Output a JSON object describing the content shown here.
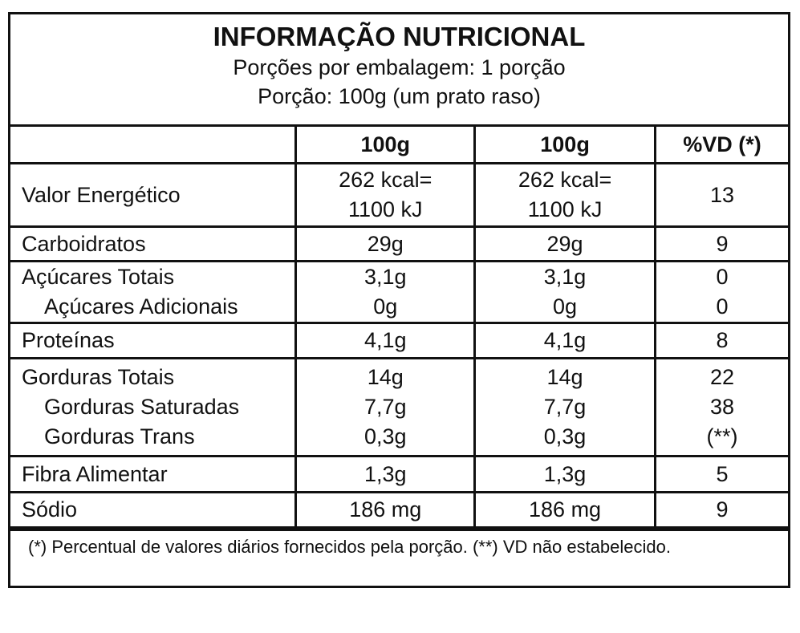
{
  "header": {
    "title": "INFORMAÇÃO NUTRICIONAL",
    "lines": [
      "Porções por embalagem: 1 porção",
      "Porção: 100g (um prato raso)"
    ]
  },
  "table": {
    "columns": [
      "100g",
      "100g",
      "%VD (*)"
    ],
    "groups": [
      {
        "rows": [
          {
            "label": "Valor Energético",
            "cells": [
              [
                "262 kcal=",
                "1100 kJ"
              ],
              [
                "262 kcal=",
                "1100 kJ"
              ],
              [
                "13"
              ]
            ]
          }
        ]
      },
      {
        "rows": [
          {
            "label": "Carboidratos",
            "cells": [
              [
                "29g"
              ],
              [
                "29g"
              ],
              [
                "9"
              ]
            ]
          }
        ]
      },
      {
        "rows": [
          {
            "label": "Açúcares Totais",
            "cells": [
              [
                "3,1g"
              ],
              [
                "3,1g"
              ],
              [
                "0"
              ]
            ]
          },
          {
            "label": "Açúcares Adicionais",
            "indent": true,
            "cells": [
              [
                "0g"
              ],
              [
                "0g"
              ],
              [
                "0"
              ]
            ]
          }
        ]
      },
      {
        "rows": [
          {
            "label": "Proteínas",
            "cells": [
              [
                "4,1g"
              ],
              [
                "4,1g"
              ],
              [
                "8"
              ]
            ]
          }
        ]
      },
      {
        "rows": [
          {
            "label": "Gorduras Totais",
            "cells": [
              [
                "14g"
              ],
              [
                "14g"
              ],
              [
                "22"
              ]
            ]
          },
          {
            "label": "Gorduras Saturadas",
            "indent": true,
            "cells": [
              [
                "7,7g"
              ],
              [
                "7,7g"
              ],
              [
                "38"
              ]
            ]
          },
          {
            "label": "Gorduras Trans",
            "indent": true,
            "cells": [
              [
                "0,3g"
              ],
              [
                "0,3g"
              ],
              [
                "(**)"
              ]
            ]
          }
        ]
      },
      {
        "rows": [
          {
            "label": "Fibra Alimentar",
            "cells": [
              [
                "1,3g"
              ],
              [
                "1,3g"
              ],
              [
                "5"
              ]
            ]
          }
        ]
      },
      {
        "rows": [
          {
            "label": "Sódio",
            "cells": [
              [
                "186 mg"
              ],
              [
                "186 mg"
              ],
              [
                "9"
              ]
            ]
          }
        ]
      }
    ]
  },
  "footnote": "(*) Percentual de valores diários fornecidos pela porção. (**) VD não estabelecido."
}
